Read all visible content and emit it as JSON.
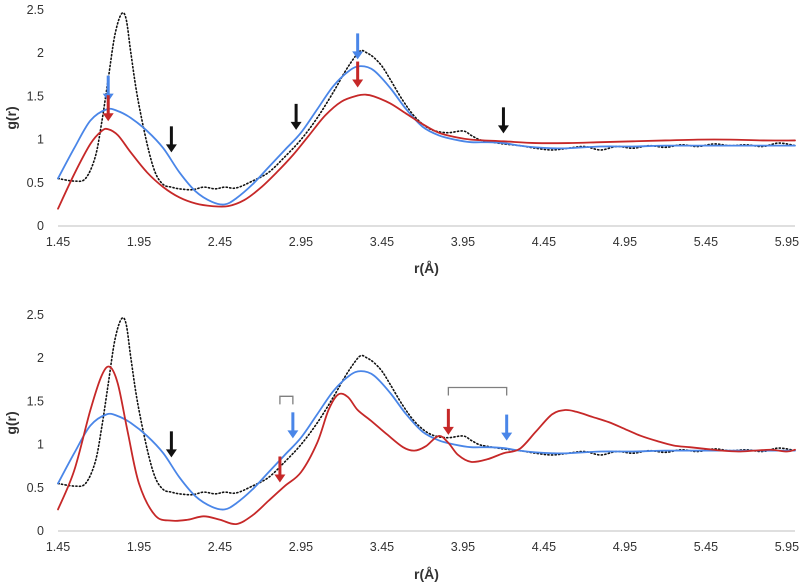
{
  "colors": {
    "reference_dotted": "#111111",
    "blue": "#4a86e8",
    "red": "#c62828",
    "black_arrow": "#111111",
    "axis": "#bfbfbf",
    "bracket": "#7f7f7f"
  },
  "chart_data": [
    {
      "type": "line",
      "title": "",
      "xlabel": "r(Å)",
      "ylabel": "g(r)",
      "xlim": [
        1.45,
        6.0
      ],
      "ylim": [
        0,
        2.5
      ],
      "x_ticks": [
        "1.45",
        "1.95",
        "2.45",
        "2.95",
        "3.45",
        "3.95",
        "4.45",
        "4.95",
        "5.45",
        "5.95"
      ],
      "y_ticks": [
        "0",
        "0.5",
        "1",
        "1.5",
        "2",
        "2.5"
      ],
      "grid": false,
      "legend": "none",
      "series": [
        {
          "style": "dotted",
          "color": "#111111",
          "x": [
            1.45,
            1.55,
            1.62,
            1.68,
            1.72,
            1.76,
            1.8,
            1.84,
            1.87,
            1.9,
            1.94,
            2.0,
            2.05,
            2.1,
            2.15,
            2.2,
            2.28,
            2.35,
            2.42,
            2.48,
            2.55,
            2.65,
            2.75,
            2.85,
            2.95,
            3.05,
            3.15,
            3.22,
            3.28,
            3.32,
            3.36,
            3.4,
            3.45,
            3.5,
            3.58,
            3.66,
            3.75,
            3.85,
            3.95,
            4.0,
            4.05,
            4.1,
            4.2,
            4.3,
            4.4,
            4.5,
            4.6,
            4.7,
            4.8,
            4.9,
            5.0,
            5.1,
            5.2,
            5.3,
            5.4,
            5.5,
            5.6,
            5.7,
            5.8,
            5.9,
            6.0
          ],
          "y": [
            0.55,
            0.52,
            0.55,
            0.8,
            1.2,
            1.7,
            2.2,
            2.45,
            2.4,
            2.0,
            1.5,
            0.95,
            0.62,
            0.48,
            0.45,
            0.43,
            0.42,
            0.45,
            0.43,
            0.45,
            0.44,
            0.52,
            0.62,
            0.8,
            1.0,
            1.25,
            1.55,
            1.78,
            1.95,
            2.03,
            2.0,
            1.95,
            1.85,
            1.7,
            1.45,
            1.25,
            1.12,
            1.08,
            1.1,
            1.05,
            1.0,
            0.98,
            0.95,
            0.93,
            0.9,
            0.88,
            0.9,
            0.92,
            0.88,
            0.92,
            0.9,
            0.93,
            0.91,
            0.94,
            0.92,
            0.95,
            0.93,
            0.94,
            0.92,
            0.96,
            0.93
          ]
        },
        {
          "style": "solid",
          "color": "#4a86e8",
          "x": [
            1.45,
            1.55,
            1.65,
            1.75,
            1.82,
            1.9,
            2.0,
            2.1,
            2.2,
            2.3,
            2.4,
            2.48,
            2.55,
            2.65,
            2.75,
            2.85,
            2.95,
            3.05,
            3.15,
            3.25,
            3.32,
            3.4,
            3.5,
            3.6,
            3.7,
            3.8,
            3.9,
            4.0,
            4.1,
            4.2,
            4.3,
            4.4,
            4.5,
            4.6,
            4.8,
            5.0,
            5.2,
            5.4,
            5.6,
            5.8,
            6.0
          ],
          "y": [
            0.55,
            0.9,
            1.22,
            1.35,
            1.33,
            1.25,
            1.1,
            0.9,
            0.62,
            0.4,
            0.28,
            0.25,
            0.32,
            0.48,
            0.68,
            0.88,
            1.08,
            1.35,
            1.62,
            1.8,
            1.85,
            1.8,
            1.6,
            1.35,
            1.15,
            1.05,
            1.0,
            0.97,
            0.97,
            0.96,
            0.93,
            0.91,
            0.9,
            0.9,
            0.92,
            0.92,
            0.93,
            0.93,
            0.93,
            0.93,
            0.93
          ]
        },
        {
          "style": "solid",
          "color": "#c62828",
          "x": [
            1.45,
            1.55,
            1.65,
            1.72,
            1.76,
            1.82,
            1.9,
            2.0,
            2.1,
            2.2,
            2.3,
            2.4,
            2.5,
            2.6,
            2.7,
            2.8,
            2.9,
            3.0,
            3.1,
            3.2,
            3.3,
            3.35,
            3.4,
            3.5,
            3.6,
            3.7,
            3.8,
            3.9,
            4.0,
            4.2,
            4.4,
            4.6,
            4.8,
            5.0,
            5.2,
            5.4,
            5.6,
            5.8,
            6.0
          ],
          "y": [
            0.2,
            0.6,
            0.95,
            1.1,
            1.12,
            1.05,
            0.85,
            0.62,
            0.45,
            0.33,
            0.26,
            0.23,
            0.23,
            0.3,
            0.44,
            0.62,
            0.82,
            1.05,
            1.28,
            1.44,
            1.51,
            1.52,
            1.5,
            1.42,
            1.3,
            1.18,
            1.08,
            1.03,
            1.0,
            0.98,
            0.96,
            0.96,
            0.97,
            0.98,
            0.99,
            1.0,
            1.0,
            0.99,
            0.99
          ]
        }
      ],
      "arrows": [
        {
          "color": "blue",
          "x": 1.76
        },
        {
          "color": "red",
          "x": 1.76
        },
        {
          "color": "black",
          "x": 2.15
        },
        {
          "color": "black",
          "x": 2.92
        },
        {
          "color": "blue",
          "x": 3.3
        },
        {
          "color": "red",
          "x": 3.3
        },
        {
          "color": "black",
          "x": 4.2
        }
      ]
    },
    {
      "type": "line",
      "title": "",
      "xlabel": "r(Å)",
      "ylabel": "g(r)",
      "xlim": [
        1.45,
        6.0
      ],
      "ylim": [
        0,
        2.5
      ],
      "x_ticks": [
        "1.45",
        "1.95",
        "2.45",
        "2.95",
        "3.45",
        "3.95",
        "4.45",
        "4.95",
        "5.45",
        "5.95"
      ],
      "y_ticks": [
        "0",
        "0.5",
        "1",
        "1.5",
        "2",
        "2.5"
      ],
      "grid": false,
      "legend": "none",
      "series": [
        {
          "style": "dotted",
          "color": "#111111",
          "x": [
            1.45,
            1.55,
            1.62,
            1.68,
            1.72,
            1.76,
            1.8,
            1.84,
            1.87,
            1.9,
            1.94,
            2.0,
            2.05,
            2.1,
            2.15,
            2.2,
            2.28,
            2.35,
            2.42,
            2.48,
            2.55,
            2.65,
            2.75,
            2.85,
            2.95,
            3.05,
            3.15,
            3.22,
            3.28,
            3.32,
            3.36,
            3.4,
            3.45,
            3.5,
            3.58,
            3.66,
            3.75,
            3.85,
            3.95,
            4.0,
            4.05,
            4.1,
            4.2,
            4.3,
            4.4,
            4.5,
            4.6,
            4.7,
            4.8,
            4.9,
            5.0,
            5.1,
            5.2,
            5.3,
            5.4,
            5.5,
            5.6,
            5.7,
            5.8,
            5.9,
            6.0
          ],
          "y": [
            0.55,
            0.52,
            0.55,
            0.8,
            1.2,
            1.7,
            2.2,
            2.45,
            2.4,
            2.0,
            1.5,
            0.95,
            0.62,
            0.48,
            0.45,
            0.43,
            0.42,
            0.45,
            0.43,
            0.45,
            0.44,
            0.52,
            0.62,
            0.8,
            1.0,
            1.25,
            1.55,
            1.78,
            1.95,
            2.03,
            2.0,
            1.95,
            1.85,
            1.7,
            1.45,
            1.25,
            1.12,
            1.08,
            1.1,
            1.05,
            1.0,
            0.98,
            0.95,
            0.93,
            0.9,
            0.88,
            0.9,
            0.92,
            0.88,
            0.92,
            0.9,
            0.93,
            0.91,
            0.94,
            0.92,
            0.95,
            0.93,
            0.94,
            0.92,
            0.96,
            0.93
          ]
        },
        {
          "style": "solid",
          "color": "#4a86e8",
          "x": [
            1.45,
            1.55,
            1.65,
            1.75,
            1.82,
            1.9,
            2.0,
            2.1,
            2.2,
            2.3,
            2.4,
            2.48,
            2.55,
            2.65,
            2.75,
            2.85,
            2.95,
            3.05,
            3.15,
            3.25,
            3.32,
            3.4,
            3.5,
            3.6,
            3.7,
            3.8,
            3.9,
            4.0,
            4.1,
            4.2,
            4.3,
            4.4,
            4.5,
            4.6,
            4.8,
            5.0,
            5.2,
            5.4,
            5.6,
            5.8,
            6.0
          ],
          "y": [
            0.55,
            0.9,
            1.22,
            1.35,
            1.33,
            1.25,
            1.1,
            0.9,
            0.62,
            0.4,
            0.28,
            0.25,
            0.32,
            0.48,
            0.68,
            0.88,
            1.08,
            1.35,
            1.62,
            1.8,
            1.85,
            1.8,
            1.6,
            1.35,
            1.15,
            1.05,
            1.0,
            0.97,
            0.97,
            0.96,
            0.93,
            0.91,
            0.9,
            0.9,
            0.92,
            0.92,
            0.93,
            0.93,
            0.93,
            0.93,
            0.93
          ]
        },
        {
          "style": "solid",
          "color": "#c62828",
          "x": [
            1.45,
            1.55,
            1.65,
            1.72,
            1.77,
            1.82,
            1.88,
            1.95,
            2.05,
            2.15,
            2.25,
            2.35,
            2.45,
            2.55,
            2.65,
            2.75,
            2.85,
            2.95,
            3.05,
            3.12,
            3.18,
            3.24,
            3.3,
            3.38,
            3.48,
            3.58,
            3.65,
            3.72,
            3.8,
            3.86,
            3.92,
            4.0,
            4.1,
            4.2,
            4.3,
            4.4,
            4.5,
            4.58,
            4.65,
            4.75,
            4.85,
            4.95,
            5.05,
            5.15,
            5.25,
            5.35,
            5.45,
            5.55,
            5.65,
            5.75,
            5.85,
            5.95,
            6.0
          ],
          "y": [
            0.25,
            0.7,
            1.4,
            1.8,
            1.9,
            1.7,
            1.15,
            0.55,
            0.18,
            0.12,
            0.13,
            0.17,
            0.13,
            0.08,
            0.18,
            0.35,
            0.52,
            0.68,
            1.02,
            1.4,
            1.58,
            1.55,
            1.4,
            1.28,
            1.12,
            0.97,
            0.93,
            0.98,
            1.1,
            1.02,
            0.88,
            0.8,
            0.83,
            0.9,
            0.95,
            1.15,
            1.35,
            1.4,
            1.38,
            1.32,
            1.26,
            1.18,
            1.1,
            1.04,
            0.99,
            0.97,
            0.95,
            0.93,
            0.92,
            0.93,
            0.94,
            0.92,
            0.94
          ]
        }
      ],
      "arrows": [
        {
          "color": "black",
          "x": 2.15
        },
        {
          "color": "blue",
          "x": 2.9
        },
        {
          "color": "red",
          "x": 2.82
        },
        {
          "color": "red",
          "x": 3.86
        },
        {
          "color": "blue",
          "x": 4.22
        }
      ],
      "brackets": [
        {
          "x0": 2.82,
          "x1": 2.9
        },
        {
          "x0": 3.86,
          "x1": 4.22
        }
      ]
    }
  ]
}
